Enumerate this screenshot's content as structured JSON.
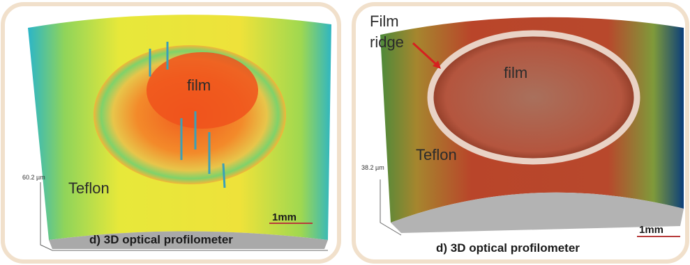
{
  "panels": [
    {
      "surface_label": "film",
      "substrate_label": "Teflon",
      "axis_label": "60.2 µm",
      "scale_bar": "1mm",
      "caption": "d) 3D optical profilometer"
    },
    {
      "annotation_lines": [
        "Film",
        "ridge"
      ],
      "surface_label": "film",
      "substrate_label": "Teflon",
      "axis_label": "38.2 µm",
      "scale_bar": "1mm",
      "caption": "d) 3D optical profilometer"
    }
  ]
}
